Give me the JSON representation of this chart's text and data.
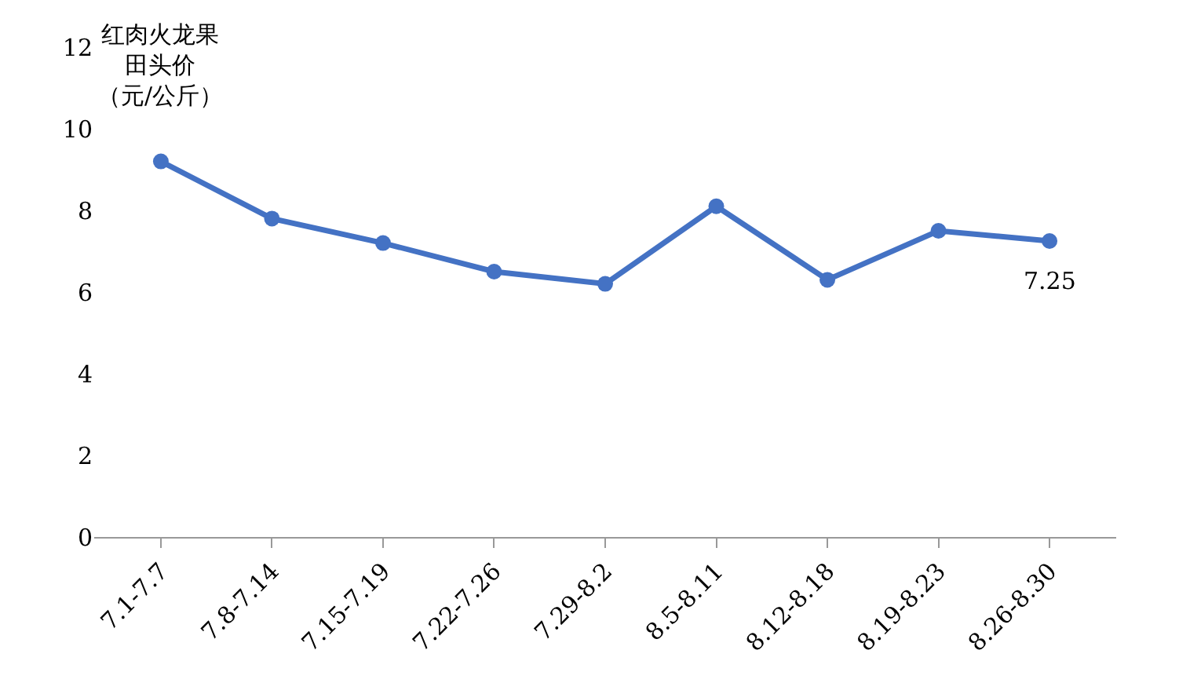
{
  "chart_data": {
    "type": "line",
    "ylabel": "红肉火龙果田头价（元/公斤）",
    "categories": [
      "7.1-7.7",
      "7.8-7.14",
      "7.15-7.19",
      "7.22-7.26",
      "7.29-8.2",
      "8.5-8.11",
      "8.12-8.18",
      "8.19-8.23",
      "8.26-8.30"
    ],
    "series": [
      {
        "color": "#4472c4",
        "values": [
          9.2,
          7.8,
          7.2,
          6.5,
          6.2,
          8.1,
          6.3,
          7.5,
          7.25
        ],
        "value_labels": [
          null,
          null,
          null,
          null,
          null,
          null,
          null,
          null,
          "7.25"
        ]
      }
    ],
    "ylim": [
      0,
      12
    ],
    "yticks": [
      0,
      2,
      4,
      6,
      8,
      10,
      12
    ],
    "marker": "circle",
    "line_style": "solid"
  }
}
